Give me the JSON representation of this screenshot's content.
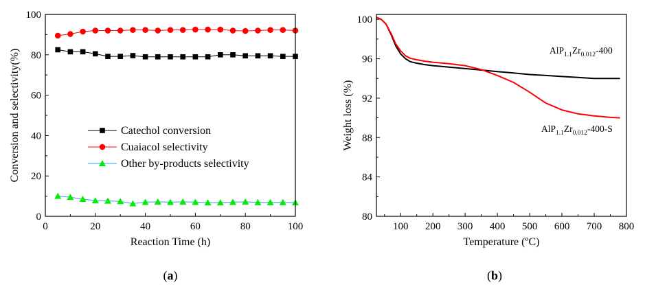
{
  "chart_data": [
    {
      "type": "line",
      "xlabel": "Reaction Time (h)",
      "ylabel": "Conversion and selectivity(%)",
      "xlim": [
        0,
        100
      ],
      "ylim": [
        0,
        100
      ],
      "xticks": [
        "0",
        "20",
        "40",
        "60",
        "80",
        "100"
      ],
      "yticks": [
        "0",
        "20",
        "40",
        "60",
        "80",
        "100"
      ],
      "x": [
        5,
        10,
        15,
        20,
        25,
        30,
        35,
        40,
        45,
        50,
        55,
        60,
        65,
        70,
        75,
        80,
        85,
        90,
        95,
        100
      ],
      "series": [
        {
          "name": "Catechol conversion",
          "color": "#000000",
          "marker": "square",
          "values": [
            82.5,
            81.5,
            81.5,
            80.5,
            79.2,
            79.2,
            79.6,
            79.0,
            79.0,
            79.0,
            79.0,
            79.0,
            79.0,
            80.0,
            80.0,
            79.5,
            79.5,
            79.5,
            79.2,
            79.2
          ]
        },
        {
          "name": "Cuaiacol selectivity",
          "color": "#ff0000",
          "marker": "circle",
          "values": [
            89.5,
            90.3,
            91.5,
            92.0,
            92.0,
            92.0,
            92.3,
            92.3,
            92.0,
            92.3,
            92.3,
            92.5,
            92.5,
            92.5,
            92.0,
            91.8,
            92.0,
            92.3,
            92.3,
            92.0
          ]
        },
        {
          "name": "Other by-products selectivity",
          "color": "#00ee00",
          "line_color": "#3399ff",
          "marker": "triangle",
          "values": [
            10.0,
            9.5,
            8.5,
            7.8,
            7.6,
            7.4,
            6.3,
            7.0,
            7.2,
            7.0,
            7.2,
            7.0,
            6.8,
            6.8,
            7.0,
            7.2,
            6.9,
            6.9,
            6.9,
            6.8
          ]
        }
      ],
      "legend_position": "lower-center",
      "panel_label": "(a)"
    },
    {
      "type": "line",
      "xlabel": "Temperature (ºC)",
      "ylabel": "Weight loss (%)",
      "xlim": [
        25,
        800
      ],
      "ylim": [
        80,
        100.5
      ],
      "xticks": [
        "100",
        "200",
        "300",
        "400",
        "500",
        "600",
        "700",
        "800"
      ],
      "yticks": [
        "80",
        "84",
        "88",
        "92",
        "96",
        "100"
      ],
      "series": [
        {
          "name": "AlP1.1Zr0.012-400",
          "color": "#000000",
          "x": [
            25,
            40,
            55,
            70,
            85,
            100,
            115,
            130,
            150,
            175,
            200,
            250,
            300,
            350,
            400,
            450,
            500,
            550,
            600,
            650,
            700,
            750,
            780
          ],
          "values": [
            100.2,
            100.0,
            99.5,
            98.5,
            97.3,
            96.5,
            96.0,
            95.7,
            95.55,
            95.4,
            95.3,
            95.15,
            95.0,
            94.85,
            94.7,
            94.55,
            94.4,
            94.3,
            94.2,
            94.1,
            94.0,
            94.0,
            94.0
          ]
        },
        {
          "name": "AlP1.1Zr0.012-400-S",
          "color": "#ff0000",
          "x": [
            25,
            40,
            55,
            70,
            85,
            100,
            115,
            130,
            150,
            175,
            200,
            250,
            300,
            350,
            400,
            450,
            500,
            550,
            600,
            650,
            700,
            750,
            780
          ],
          "values": [
            100.2,
            100.0,
            99.5,
            98.6,
            97.5,
            96.8,
            96.3,
            96.05,
            95.9,
            95.75,
            95.65,
            95.5,
            95.3,
            94.9,
            94.3,
            93.6,
            92.6,
            91.5,
            90.8,
            90.4,
            90.2,
            90.05,
            90.0
          ]
        }
      ],
      "annotations": [
        {
          "base": "AlP",
          "sub1": "1.1",
          "mid": "Zr",
          "sub2": "0.012",
          "tail": "-400"
        },
        {
          "base": "AlP",
          "sub1": "1.1",
          "mid": "Zr",
          "sub2": "0.012",
          "tail": "-400-S"
        }
      ],
      "panel_label": "(b)"
    }
  ]
}
